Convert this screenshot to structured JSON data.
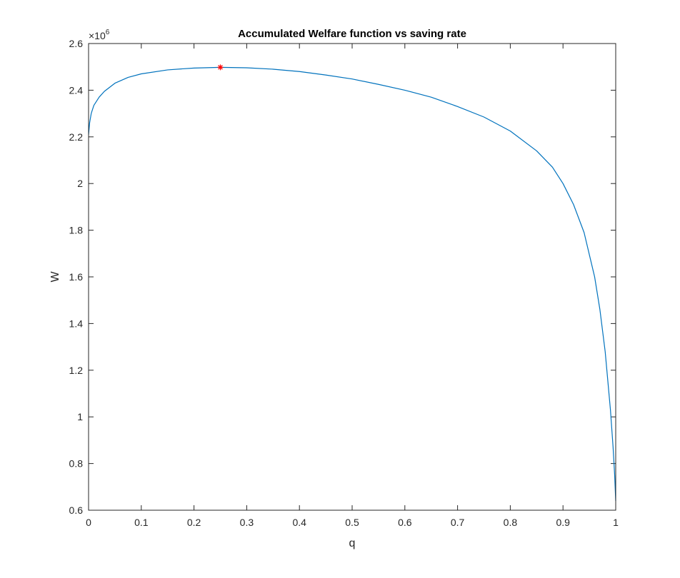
{
  "chart_data": {
    "type": "line",
    "title": "Accumulated Welfare function vs saving rate",
    "xlabel": "q",
    "ylabel": "W",
    "y_exponent_label": "×10",
    "y_exponent_power": "6",
    "xlim": [
      0,
      1
    ],
    "ylim": [
      0.6,
      2.6
    ],
    "xticks": [
      0,
      0.1,
      0.2,
      0.3,
      0.4,
      0.5,
      0.6,
      0.7,
      0.8,
      0.9,
      1
    ],
    "xtick_labels": [
      "0",
      "0.1",
      "0.2",
      "0.3",
      "0.4",
      "0.5",
      "0.6",
      "0.7",
      "0.8",
      "0.9",
      "1"
    ],
    "yticks": [
      0.6,
      0.8,
      1,
      1.2,
      1.4,
      1.6,
      1.8,
      2,
      2.2,
      2.4,
      2.6
    ],
    "ytick_labels": [
      "0.6",
      "0.8",
      "1",
      "1.2",
      "1.4",
      "1.6",
      "1.8",
      "2",
      "2.2",
      "2.4",
      "2.6"
    ],
    "grid": false,
    "series": [
      {
        "color": "#0072BD",
        "x": [
          0,
          0.002,
          0.005,
          0.01,
          0.02,
          0.03,
          0.05,
          0.075,
          0.1,
          0.15,
          0.2,
          0.25,
          0.3,
          0.35,
          0.4,
          0.45,
          0.5,
          0.55,
          0.6,
          0.65,
          0.7,
          0.75,
          0.8,
          0.85,
          0.88,
          0.9,
          0.92,
          0.94,
          0.96,
          0.97,
          0.98,
          0.99,
          0.995,
          0.998,
          1.0
        ],
        "y": [
          2.21,
          2.26,
          2.3,
          2.335,
          2.37,
          2.395,
          2.43,
          2.455,
          2.47,
          2.487,
          2.495,
          2.498,
          2.496,
          2.49,
          2.48,
          2.465,
          2.448,
          2.425,
          2.4,
          2.37,
          2.33,
          2.285,
          2.225,
          2.14,
          2.07,
          2.0,
          1.91,
          1.79,
          1.6,
          1.46,
          1.28,
          1.03,
          0.87,
          0.75,
          0.64
        ]
      }
    ],
    "marker": {
      "x": 0.25,
      "y": 2.498,
      "symbol": "*",
      "color": "#FF0000"
    }
  }
}
